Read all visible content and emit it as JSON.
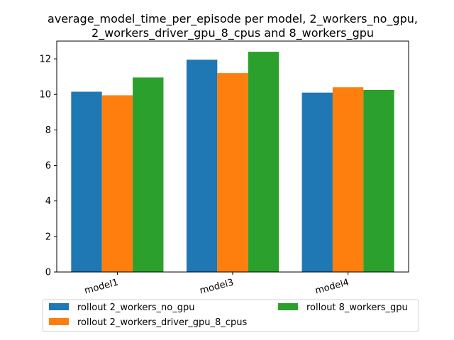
{
  "chart_data": {
    "type": "bar",
    "title_lines": [
      "average_model_time_per_episode per model, 2_workers_no_gpu,",
      "2_workers_driver_gpu_8_cpus and 8_workers_gpu"
    ],
    "categories": [
      "model1",
      "model3",
      "model4"
    ],
    "series": [
      {
        "name": "rollout 2_workers_no_gpu",
        "color": "#1f77b4",
        "values": [
          10.15,
          11.95,
          10.1
        ]
      },
      {
        "name": "rollout 2_workers_driver_gpu_8_cpus",
        "color": "#ff7f0e",
        "values": [
          9.95,
          11.2,
          10.4
        ]
      },
      {
        "name": "rollout 8_workers_gpu",
        "color": "#2ca02c",
        "values": [
          10.95,
          12.4,
          10.25
        ]
      }
    ],
    "ylim": [
      0,
      13
    ],
    "yticks": [
      0,
      2,
      4,
      6,
      8,
      10,
      12
    ],
    "xlabel": "",
    "ylabel": "",
    "grid": false,
    "legend_position": "below"
  }
}
